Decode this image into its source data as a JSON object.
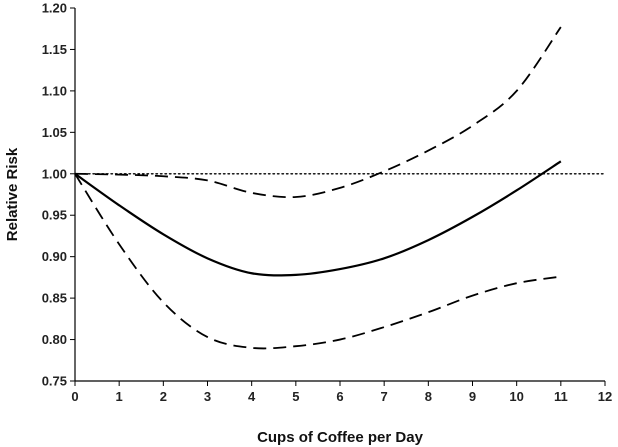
{
  "chart_data": {
    "type": "line",
    "title": "",
    "xlabel": "Cups of Coffee per Day",
    "ylabel": "Relative Risk",
    "xlim": [
      0,
      12
    ],
    "ylim": [
      0.75,
      1.2
    ],
    "xticks": [
      0,
      1,
      2,
      3,
      4,
      5,
      6,
      7,
      8,
      9,
      10,
      11,
      12
    ],
    "yticks": [
      "0.75",
      "0.80",
      "0.85",
      "0.90",
      "0.95",
      "1.00",
      "1.05",
      "1.10",
      "1.15",
      "1.20"
    ],
    "grid": false,
    "legend": "none",
    "reference_line": {
      "y": 1.0,
      "style": "dotted"
    },
    "series": [
      {
        "style": "solid",
        "x": [
          0,
          1,
          2,
          3,
          4,
          5,
          6,
          7,
          8,
          9,
          10,
          11
        ],
        "y": [
          1.0,
          0.962,
          0.927,
          0.898,
          0.88,
          0.878,
          0.885,
          0.898,
          0.92,
          0.948,
          0.98,
          1.015
        ]
      },
      {
        "style": "dashed",
        "x": [
          0,
          1,
          2,
          3,
          4,
          5,
          6,
          7,
          8,
          9,
          10,
          11
        ],
        "y": [
          1.0,
          0.999,
          0.997,
          0.992,
          0.977,
          0.972,
          0.983,
          1.003,
          1.028,
          1.058,
          1.1,
          1.177
        ]
      },
      {
        "style": "dashed",
        "x": [
          0,
          1,
          2,
          3,
          4,
          5,
          6,
          7,
          8,
          9,
          10,
          11
        ],
        "y": [
          1.0,
          0.915,
          0.845,
          0.803,
          0.79,
          0.792,
          0.8,
          0.815,
          0.833,
          0.853,
          0.868,
          0.876
        ]
      }
    ]
  }
}
